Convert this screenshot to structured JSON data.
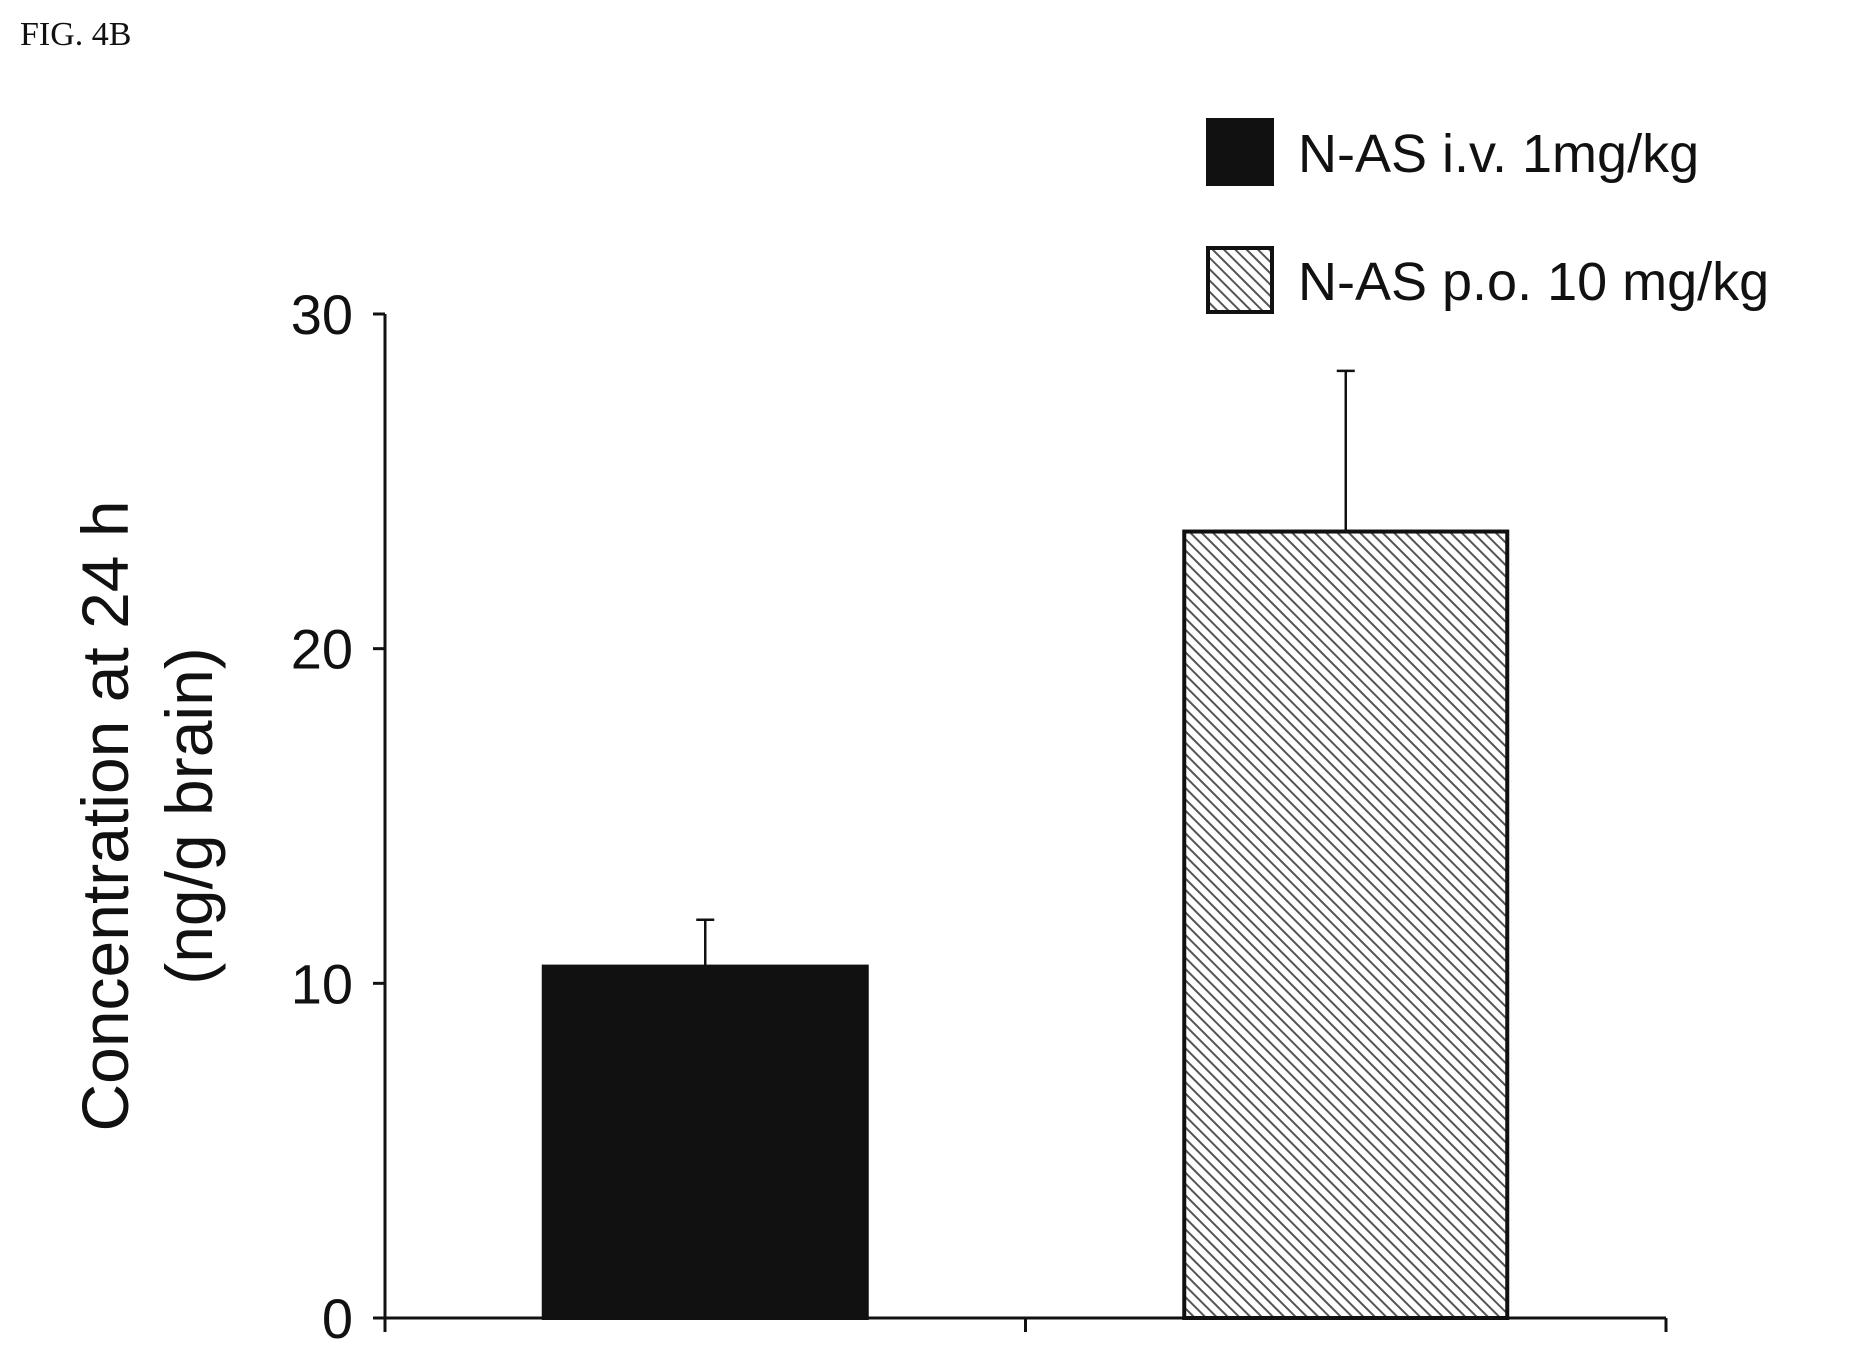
{
  "figure_label": "FIG. 4B",
  "chart_data": {
    "type": "bar",
    "categories": [
      "N-AS i.v. 1mg/kg",
      "N-AS p.o. 10 mg/kg"
    ],
    "values": [
      10.5,
      23.5
    ],
    "error": [
      1.4,
      4.8
    ],
    "ylabel": [
      "Concentration at 24 h",
      "(ng/g brain)"
    ],
    "xlabel": "",
    "ylim": [
      0,
      30
    ],
    "yticks": [
      0,
      10,
      20,
      30
    ],
    "grid": false,
    "legend_position": "top-right",
    "series": [
      {
        "name": "N-AS i.v. 1mg/kg",
        "fill": "solid",
        "color": "#111111"
      },
      {
        "name": "N-AS p.o. 10 mg/kg",
        "fill": "hatched",
        "color": "#777777"
      }
    ]
  }
}
